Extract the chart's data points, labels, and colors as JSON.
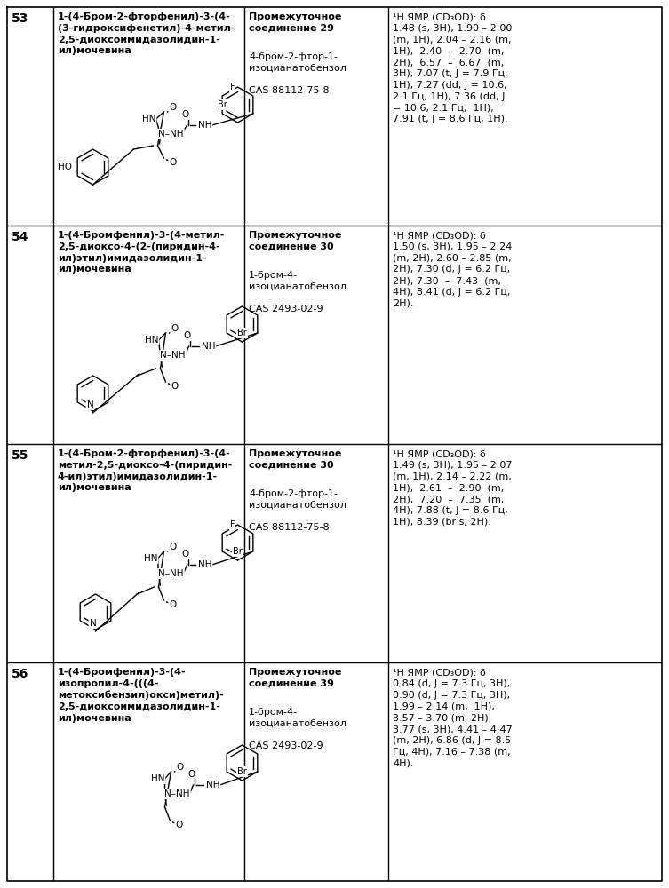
{
  "figsize": [
    7.53,
    10.0
  ],
  "dpi": 100,
  "bg_color": "#ffffff",
  "text_color": "#000000",
  "line_color": "#000000",
  "font_size_num": 10,
  "font_size_name": 8.0,
  "font_size_inter": 8.0,
  "font_size_nmr": 8.0,
  "rows": [
    {
      "num": "53",
      "name": "1-(4-Бром-2-фторфенил)-3-(4-\n(3-гидроксифенетил)-4-метил-\n2,5-диоксоимидазолидин-1-\nил)мочевина",
      "inter_bold": "Промежуточное\nсоединение 29",
      "inter_normal": "\n4-бром-2-фтор-1-\nизоцианатобензол\n\nCAS 88112-75-8",
      "nmr": "¹H ЯМР (CD₃OD): δ\n1.48 (s, 3H), 1.90 – 2.00\n(m, 1H), 2.04 – 2.16 (m,\n1H),  2.40  –  2.70  (m,\n2H),  6.57  –  6.67  (m,\n3H), 7.07 (t, J = 7.9 Гц,\n1H), 7.27 (dd, J = 10.6,\n2.1 Гц, 1H), 7.36 (dd, J\n= 10.6, 2.1 Гц,  1H),\n7.91 (t, J = 8.6 Гц, 1H).",
      "mol_type": "53"
    },
    {
      "num": "54",
      "name": "1-(4-Бромфенил)-3-(4-метил-\n2,5-диоксо-4-(2-(пиридин-4-\nил)этил)имидазолидин-1-\nил)мочевина",
      "inter_bold": "Промежуточное\nсоединение 30",
      "inter_normal": "\n1-бром-4-\nизоцианатобензол\n\nCAS 2493-02-9",
      "nmr": "¹H ЯМР (CD₃OD): δ\n1.50 (s, 3H), 1.95 – 2.24\n(m, 2H), 2.60 – 2.85 (m,\n2H), 7.30 (d, J = 6.2 Гц,\n2H), 7.30  –  7.43  (m,\n4H), 8.41 (d, J = 6.2 Гц,\n2H).",
      "mol_type": "54"
    },
    {
      "num": "55",
      "name": "1-(4-Бром-2-фторфенил)-3-(4-\nметил-2,5-диоксо-4-(пиридин-\n4-ил)этил)имидазолидин-1-\nил)мочевина",
      "inter_bold": "Промежуточное\nсоединение 30",
      "inter_normal": "\n4-бром-2-фтор-1-\nизоцианатобензол\n\nCAS 88112-75-8",
      "nmr": "¹H ЯМР (CD₃OD): δ\n1.49 (s, 3H), 1.95 – 2.07\n(m, 1H), 2.14 – 2.22 (m,\n1H),  2.61  –  2.90  (m,\n2H),  7.20  –  7.35  (m,\n4H), 7.88 (t, J = 8.6 Гц,\n1H), 8.39 (br s, 2H).",
      "mol_type": "55"
    },
    {
      "num": "56",
      "name": "1-(4-Бромфенил)-3-(4-\nизопропил-4-(((4-\nметоксибензил)окси)метил)-\n2,5-диоксоимидазолидин-1-\nил)мочевина",
      "inter_bold": "Промежуточное\nсоединение 39",
      "inter_normal": "\n1-бром-4-\nизоцианатобензол\n\nCAS 2493-02-9",
      "nmr": "¹H ЯМР (CD₃OD): δ\n0.84 (d, J = 7.3 Гц, 3H),\n0.90 (d, J = 7.3 Гц, 3H),\n1.99 – 2.14 (m,  1H),\n3.57 – 3.70 (m, 2H),\n3.77 (s, 3H), 4.41 – 4.47\n(m, 2H), 6.86 (d, J = 8.5\nГц, 4H), 7.16 – 7.38 (m,\n4H).",
      "mol_type": "56"
    }
  ]
}
